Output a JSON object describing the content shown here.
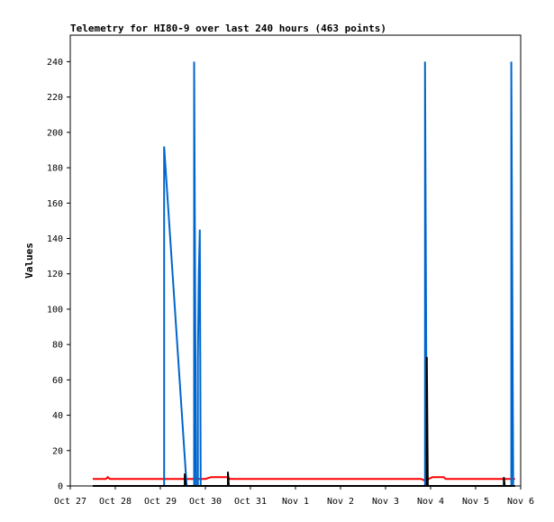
{
  "chart_data": {
    "type": "line",
    "title": "Telemetry for HI80-9 over last 240 hours (463 points)",
    "ylabel": "Values",
    "xlabel": "",
    "ylim": [
      0,
      255
    ],
    "y_ticks": [
      0,
      20,
      40,
      60,
      80,
      100,
      120,
      140,
      160,
      180,
      200,
      220,
      240
    ],
    "x_range": [
      0,
      240
    ],
    "x_ticks": [
      {
        "label": "Oct 27",
        "x": 0
      },
      {
        "label": "Oct 28",
        "x": 24
      },
      {
        "label": "Oct 29",
        "x": 48
      },
      {
        "label": "Oct 30",
        "x": 72
      },
      {
        "label": "Oct 31",
        "x": 96
      },
      {
        "label": "Nov 1",
        "x": 120
      },
      {
        "label": "Nov 2",
        "x": 144
      },
      {
        "label": "Nov 3",
        "x": 168
      },
      {
        "label": "Nov 4",
        "x": 192
      },
      {
        "label": "Nov 5",
        "x": 216
      },
      {
        "label": "Nov 6",
        "x": 240
      }
    ],
    "grid": false,
    "series": [
      {
        "color": "#ff0000",
        "points": [
          [
            12,
            4
          ],
          [
            19,
            4
          ],
          [
            20,
            5
          ],
          [
            21,
            4
          ],
          [
            72,
            4
          ],
          [
            75,
            5
          ],
          [
            84,
            5
          ],
          [
            85,
            4
          ],
          [
            187,
            4
          ],
          [
            189,
            3
          ],
          [
            191,
            4
          ],
          [
            193,
            5
          ],
          [
            199,
            5
          ],
          [
            200,
            4
          ],
          [
            237,
            4
          ]
        ]
      },
      {
        "color": "#0066cc",
        "points": [
          [
            12,
            0
          ],
          [
            50,
            0
          ],
          [
            50,
            192
          ],
          [
            62,
            0
          ],
          [
            66,
            0
          ],
          [
            66,
            240
          ],
          [
            67,
            0
          ],
          [
            68,
            0
          ],
          [
            68,
            72
          ],
          [
            68.5,
            120
          ],
          [
            69,
            145
          ],
          [
            69.5,
            0
          ],
          [
            75,
            0
          ],
          [
            189,
            0
          ],
          [
            189,
            240
          ],
          [
            190,
            0
          ],
          [
            235,
            0
          ],
          [
            235,
            240
          ],
          [
            236,
            0
          ],
          [
            237,
            0
          ]
        ]
      },
      {
        "color": "#000000",
        "points": [
          [
            12,
            0
          ],
          [
            61,
            0
          ],
          [
            61,
            7
          ],
          [
            61.5,
            0
          ],
          [
            84,
            0
          ],
          [
            84,
            8
          ],
          [
            84.5,
            0
          ],
          [
            190,
            0
          ],
          [
            190,
            73
          ],
          [
            190.5,
            0
          ],
          [
            231,
            0
          ],
          [
            231,
            5
          ],
          [
            231.5,
            0
          ],
          [
            237,
            0
          ]
        ]
      }
    ]
  }
}
